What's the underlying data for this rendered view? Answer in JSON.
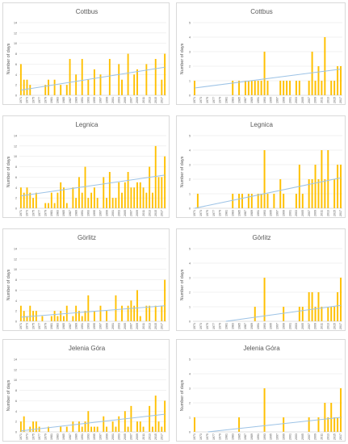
{
  "ylabel": "Number of days",
  "x_ticks": [
    "1971",
    "1973",
    "1975",
    "1977",
    "1979",
    "1981",
    "1983",
    "1985",
    "1987",
    "1989",
    "1991",
    "1993",
    "1995",
    "1997",
    "1999",
    "2001",
    "2003",
    "2005",
    "2007",
    "2009",
    "2011",
    "2013",
    "2015",
    "2017"
  ],
  "colors": {
    "bar": "#ffc000",
    "trend": "#9dc3e6"
  },
  "chart_data": [
    {
      "type": "bar",
      "title": "Cottbus",
      "ylabel": "Number of days",
      "ylim": [
        0,
        14
      ],
      "yticks": [
        0,
        2,
        4,
        6,
        8,
        10,
        12,
        14
      ],
      "x_start": 1971,
      "x_end": 2018,
      "values": [
        6,
        3,
        3,
        2,
        0,
        0,
        0,
        0,
        2,
        3,
        0,
        3,
        0,
        2,
        0,
        2,
        7,
        0,
        4,
        0,
        7,
        0,
        3,
        0,
        5,
        0,
        4,
        0,
        0,
        7,
        0,
        0,
        6,
        3,
        0,
        8,
        0,
        4,
        5,
        0,
        0,
        6,
        0,
        0,
        7,
        0,
        3,
        8
      ],
      "trend": [
        1.0,
        5.4
      ]
    },
    {
      "type": "bar",
      "title": "Cottbus",
      "ylabel": "Number of days",
      "ylim": [
        0,
        5
      ],
      "yticks": [
        0,
        1,
        2,
        3,
        4,
        5
      ],
      "x_start": 1971,
      "x_end": 2017,
      "values": [
        1,
        0,
        0,
        0,
        0,
        0,
        0,
        0,
        0,
        0,
        0,
        0,
        1,
        0,
        1,
        0,
        1,
        1,
        1,
        1,
        1,
        1,
        3,
        1,
        0,
        0,
        0,
        1,
        1,
        1,
        1,
        0,
        1,
        1,
        0,
        0,
        1,
        3,
        1,
        2,
        1,
        4,
        0,
        1,
        1,
        2,
        2
      ],
      "trend": [
        0.5,
        1.8
      ]
    },
    {
      "type": "bar",
      "title": "Legnica",
      "ylabel": "Number of days",
      "ylim": [
        0,
        14
      ],
      "yticks": [
        0,
        2,
        4,
        6,
        8,
        10,
        12,
        14
      ],
      "x_start": 1971,
      "x_end": 2018,
      "values": [
        4,
        3,
        4,
        3,
        2,
        3,
        0,
        0,
        1,
        1,
        3,
        1,
        3,
        5,
        4,
        1,
        0,
        4,
        2,
        6,
        3,
        8,
        2,
        3,
        4,
        2,
        0,
        6,
        2,
        7,
        2,
        2,
        5,
        3,
        5,
        7,
        4,
        4,
        5,
        5,
        4,
        3,
        8,
        3,
        12,
        6,
        6,
        10
      ],
      "trend": [
        2.4,
        6.4
      ]
    },
    {
      "type": "bar",
      "title": "Legnica",
      "ylabel": "Number of days",
      "ylim": [
        0,
        5
      ],
      "yticks": [
        0,
        1,
        2,
        3,
        4,
        5
      ],
      "x_start": 1971,
      "x_end": 2017,
      "values": [
        0,
        1,
        0,
        0,
        0,
        0,
        0,
        0,
        0,
        0,
        0,
        0,
        1,
        0,
        1,
        1,
        0,
        1,
        1,
        0,
        1,
        1,
        4,
        1,
        0,
        1,
        0,
        2,
        1,
        0,
        0,
        0,
        1,
        3,
        1,
        0,
        2,
        2,
        3,
        2,
        4,
        2,
        4,
        0,
        2,
        3,
        3
      ],
      "trend": [
        0.0,
        2.1
      ]
    },
    {
      "type": "bar",
      "title": "Görlitz",
      "ylabel": "Number of days",
      "ylim": [
        0,
        14
      ],
      "yticks": [
        0,
        2,
        4,
        6,
        8,
        10,
        12,
        14
      ],
      "x_start": 1971,
      "x_end": 2018,
      "values": [
        3,
        2,
        1,
        3,
        2,
        2,
        0,
        1,
        0,
        0,
        1,
        2,
        1,
        2,
        1,
        3,
        0,
        1,
        3,
        2,
        1,
        2,
        5,
        0,
        2,
        0,
        3,
        0,
        2,
        0,
        0,
        5,
        0,
        3,
        0,
        3,
        4,
        3,
        6,
        1,
        0,
        3,
        3,
        0,
        3,
        0,
        3,
        8
      ],
      "trend": [
        0.8,
        3.0
      ]
    },
    {
      "type": "bar",
      "title": "Görlitz",
      "ylabel": "Number of days",
      "ylim": [
        0,
        5
      ],
      "yticks": [
        0,
        1,
        2,
        3,
        4,
        5
      ],
      "x_start": 1971,
      "x_end": 2017,
      "values": [
        0,
        0,
        0,
        0,
        0,
        0,
        0,
        0,
        0,
        0,
        0,
        0,
        0,
        0,
        0,
        0,
        0,
        0,
        0,
        1,
        0,
        0,
        3,
        0,
        0,
        0,
        0,
        0,
        1,
        0,
        0,
        0,
        0,
        1,
        1,
        0,
        2,
        2,
        1,
        2,
        1,
        0,
        1,
        1,
        1,
        2,
        3
      ],
      "trend": [
        -0.3,
        1.1
      ]
    },
    {
      "type": "bar",
      "title": "Jelenia Góra",
      "ylabel": "Number of days",
      "ylim": [
        0,
        14
      ],
      "yticks": [
        0,
        2,
        4,
        6,
        8,
        10,
        12,
        14
      ],
      "x_start": 1971,
      "x_end": 2018,
      "values": [
        2,
        3,
        0,
        1,
        2,
        2,
        1,
        0,
        0,
        1,
        0,
        0,
        0,
        1,
        0,
        1,
        0,
        2,
        0,
        2,
        1,
        2,
        4,
        1,
        1,
        1,
        0,
        3,
        1,
        0,
        2,
        1,
        3,
        0,
        4,
        1,
        5,
        0,
        2,
        2,
        1,
        0,
        5,
        1,
        7,
        2,
        1,
        6
      ],
      "trend": [
        0.2,
        3.4
      ]
    },
    {
      "type": "bar",
      "title": "Jelenia Góra",
      "ylabel": "Number of days",
      "ylim": [
        0,
        5
      ],
      "yticks": [
        0,
        1,
        2,
        3,
        4,
        5
      ],
      "x_start": 1971,
      "x_end": 2017,
      "values": [
        1,
        0,
        0,
        0,
        0,
        0,
        0,
        0,
        0,
        0,
        0,
        0,
        0,
        0,
        1,
        0,
        0,
        0,
        0,
        0,
        0,
        0,
        3,
        0,
        0,
        0,
        0,
        0,
        1,
        0,
        0,
        0,
        0,
        0,
        0,
        0,
        1,
        0,
        0,
        1,
        0,
        2,
        1,
        2,
        1,
        1,
        3
      ],
      "trend": [
        -0.1,
        1.0
      ]
    }
  ]
}
